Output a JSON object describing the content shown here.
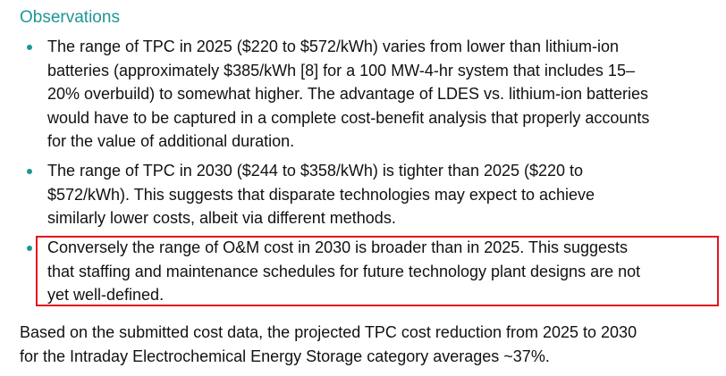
{
  "heading": "Observations",
  "bullets": [
    {
      "lines": [
        "The range of TPC in 2025 ($220 to $572/kWh) varies from lower than lithium-ion",
        "batteries (approximately $385/kWh [8] for a 100 MW-4-hr system that includes 15–",
        "20% overbuild) to somewhat higher. The advantage of LDES vs. lithium-ion batteries",
        "would have to be captured in a complete cost-benefit analysis that properly accounts",
        "for the value of additional duration."
      ]
    },
    {
      "lines": [
        "The range of TPC in 2030 ($244 to $358/kWh) is tighter than 2025 ($220 to",
        "$572/kWh). This suggests that disparate technologies may expect to achieve",
        "similarly lower costs, albeit via different methods."
      ]
    },
    {
      "lines": [
        "Conversely the range of O&M cost in 2030 is broader than in 2025. This suggests",
        "that staffing and maintenance schedules for future technology plant designs are not",
        "yet well-defined."
      ]
    }
  ],
  "paragraph": {
    "lines": [
      "Based on the submitted cost data, the projected TPC cost reduction from 2025 to 2030",
      "for the Intraday Electrochemical Energy Storage category averages ~37%."
    ]
  }
}
